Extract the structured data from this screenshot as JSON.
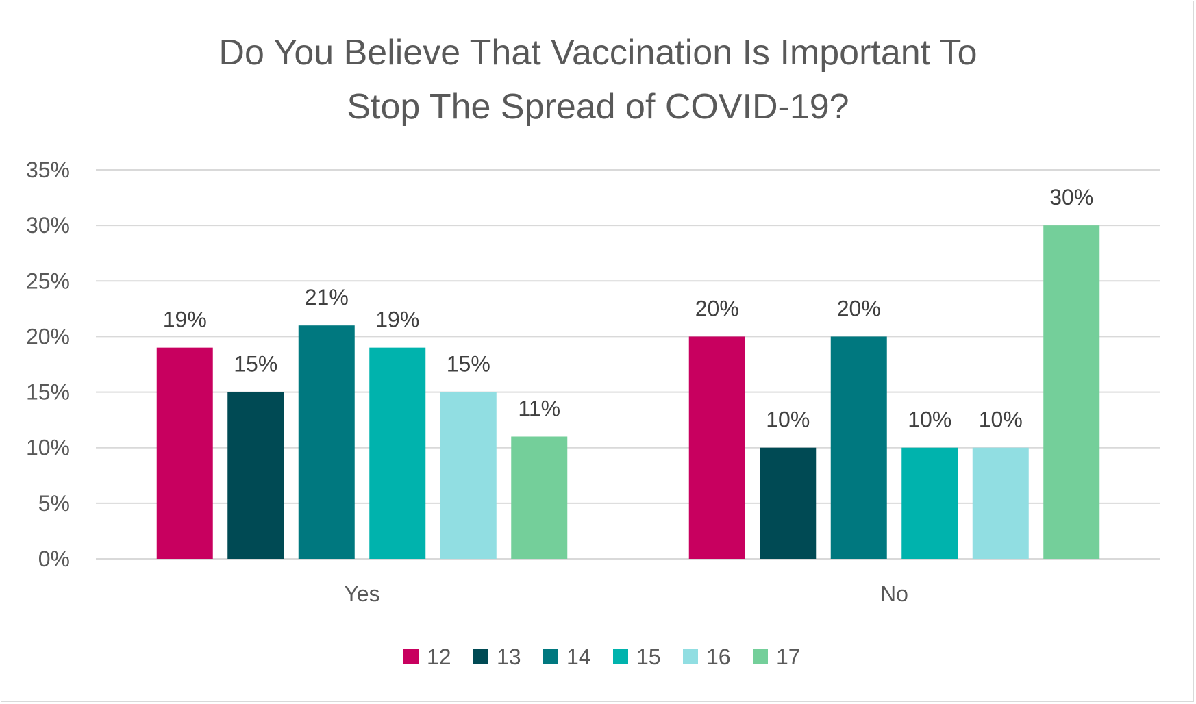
{
  "chart_data": {
    "type": "bar",
    "title_lines": [
      "Do You Believe That Vaccination Is Important To",
      "Stop The Spread of COVID-19?"
    ],
    "categories": [
      "Yes",
      "No"
    ],
    "series": [
      {
        "name": "12",
        "color": "#c8005f",
        "values": [
          19,
          20
        ]
      },
      {
        "name": "13",
        "color": "#004a54",
        "values": [
          15,
          10
        ]
      },
      {
        "name": "14",
        "color": "#00787f",
        "values": [
          21,
          20
        ]
      },
      {
        "name": "15",
        "color": "#00b3ad",
        "values": [
          19,
          10
        ]
      },
      {
        "name": "16",
        "color": "#91dee2",
        "values": [
          15,
          10
        ]
      },
      {
        "name": "17",
        "color": "#74cf9a",
        "values": [
          11,
          30
        ]
      }
    ],
    "value_suffix": "%",
    "ylim": [
      0,
      35
    ],
    "ytick_step": 5,
    "grid": true,
    "legend_position": "bottom"
  }
}
